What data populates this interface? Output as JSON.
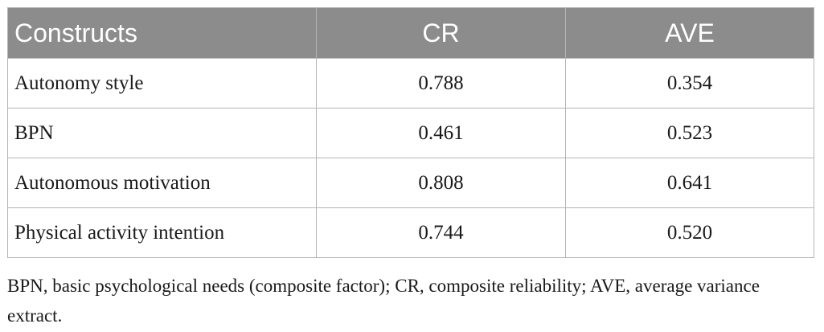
{
  "table": {
    "headers": [
      "Constructs",
      "CR",
      "AVE"
    ],
    "rows": [
      [
        "Autonomy style",
        "0.788",
        "0.354"
      ],
      [
        "BPN",
        "0.461",
        "0.523"
      ],
      [
        "Autonomous motivation",
        "0.808",
        "0.641"
      ],
      [
        "Physical activity intention",
        "0.744",
        "0.520"
      ]
    ]
  },
  "footnote": "BPN, basic psychological needs (composite factor); CR, composite reliability; AVE, average variance extract.",
  "colors": {
    "header_background": "#8c8c8c",
    "header_text": "#ffffff",
    "grid_lines": "#b5b5b5"
  }
}
